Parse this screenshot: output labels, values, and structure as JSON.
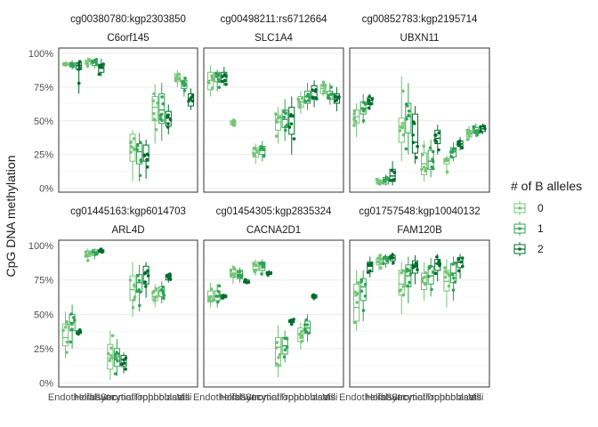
{
  "chart_data": {
    "type": "boxplot",
    "ylabel": "CpG DNA methylation",
    "xlabel": "",
    "y_ticks": [
      "0%",
      "25%",
      "50%",
      "75%",
      "100%"
    ],
    "y_tick_values": [
      0,
      0.25,
      0.5,
      0.75,
      1.0
    ],
    "ylim": [
      -0.03,
      1.04
    ],
    "categories": [
      "Endothelial",
      "Hofbauer",
      "Stromal",
      "Syncytiotrophoblasts",
      "Trophoblasts",
      "Villi"
    ],
    "legend": {
      "title": "# of B alleles",
      "position": "right",
      "entries": [
        {
          "label": "0",
          "color": "#74c476"
        },
        {
          "label": "1",
          "color": "#31a354"
        },
        {
          "label": "2",
          "color": "#006d2c"
        }
      ]
    },
    "grid": true,
    "panels": [
      {
        "strip1": "cg00380780:kgp2303850",
        "strip2": "C6orf145",
        "groups": [
          [
            [
              0.9,
              0.91,
              0.92,
              0.93,
              0.94,
              0.95,
              0.96
            ],
            [
              0.88,
              0.9,
              0.92,
              0.93,
              0.95
            ],
            [
              0.7,
              0.88,
              0.91,
              0.93,
              0.95
            ]
          ],
          [
            [
              0.9,
              0.92,
              0.94,
              0.95,
              0.97
            ],
            [
              0.89,
              0.91,
              0.93,
              0.95,
              0.96
            ],
            [
              0.83,
              0.86,
              0.89,
              0.92,
              0.96
            ]
          ],
          null,
          [
            [
              0.05,
              0.2,
              0.3,
              0.4,
              0.43
            ],
            [
              0.05,
              0.18,
              0.27,
              0.33,
              0.41
            ],
            [
              0.07,
              0.2,
              0.25,
              0.32,
              0.36
            ]
          ],
          [
            [
              0.33,
              0.5,
              0.6,
              0.68,
              0.77
            ],
            [
              0.35,
              0.48,
              0.58,
              0.7,
              0.78
            ],
            [
              0.4,
              0.46,
              0.52,
              0.57,
              0.62
            ]
          ],
          [
            [
              0.75,
              0.79,
              0.82,
              0.85,
              0.88
            ],
            [
              0.68,
              0.74,
              0.77,
              0.8,
              0.83
            ],
            [
              0.58,
              0.61,
              0.65,
              0.7,
              0.74
            ]
          ]
        ]
      },
      {
        "strip1": "cg00498211:rs6712664",
        "strip2": "SLC1A4",
        "groups": [
          [
            [
              0.68,
              0.73,
              0.8,
              0.86,
              0.91
            ],
            [
              0.72,
              0.79,
              0.83,
              0.86,
              0.88
            ],
            [
              0.76,
              0.79,
              0.83,
              0.86,
              0.9
            ]
          ],
          [
            [
              0.46,
              0.47,
              0.49,
              0.5,
              0.51
            ],
            null,
            null
          ],
          [
            [
              0.18,
              0.23,
              0.26,
              0.3,
              0.33
            ],
            [
              0.2,
              0.25,
              0.28,
              0.31,
              0.35
            ],
            null
          ],
          [
            [
              0.33,
              0.43,
              0.49,
              0.54,
              0.6
            ],
            [
              0.35,
              0.45,
              0.51,
              0.58,
              0.66
            ],
            [
              0.25,
              0.4,
              0.53,
              0.6,
              0.68
            ]
          ],
          [
            [
              0.55,
              0.6,
              0.64,
              0.68,
              0.72
            ],
            [
              0.58,
              0.63,
              0.68,
              0.72,
              0.78
            ],
            [
              0.6,
              0.66,
              0.72,
              0.76,
              0.8
            ]
          ],
          [
            [
              0.68,
              0.7,
              0.74,
              0.77,
              0.8
            ],
            [
              0.62,
              0.66,
              0.69,
              0.72,
              0.78
            ],
            [
              0.57,
              0.63,
              0.67,
              0.7,
              0.75
            ]
          ]
        ]
      },
      {
        "strip1": "cg00852783:kgp2195714",
        "strip2": "UBXN11",
        "groups": [
          [
            [
              0.38,
              0.48,
              0.53,
              0.58,
              0.63
            ],
            [
              0.48,
              0.55,
              0.59,
              0.64,
              0.7
            ],
            [
              0.58,
              0.62,
              0.65,
              0.67,
              0.7
            ]
          ],
          [
            [
              0.02,
              0.03,
              0.05,
              0.06,
              0.08
            ],
            [
              0.02,
              0.03,
              0.06,
              0.08,
              0.1
            ],
            [
              0.02,
              0.05,
              0.09,
              0.14,
              0.2
            ]
          ],
          [
            [
              0.2,
              0.34,
              0.46,
              0.52,
              0.83
            ],
            [
              0.25,
              0.41,
              0.53,
              0.63,
              0.78
            ],
            [
              0.18,
              0.26,
              0.34,
              0.55,
              0.61
            ]
          ],
          [
            [
              0.05,
              0.1,
              0.18,
              0.26,
              0.35
            ],
            [
              0.08,
              0.14,
              0.2,
              0.28,
              0.36
            ],
            [
              0.25,
              0.33,
              0.37,
              0.43,
              0.47
            ]
          ],
          [
            [
              0.1,
              0.18,
              0.2,
              0.22,
              0.24
            ],
            [
              0.2,
              0.23,
              0.27,
              0.3,
              0.34
            ],
            [
              0.28,
              0.31,
              0.33,
              0.35,
              0.38
            ]
          ],
          [
            [
              0.35,
              0.38,
              0.4,
              0.43,
              0.46
            ],
            [
              0.38,
              0.41,
              0.43,
              0.45,
              0.48
            ],
            [
              0.4,
              0.42,
              0.44,
              0.46,
              0.48
            ]
          ]
        ]
      },
      {
        "strip1": "cg01445163:kgp6014703",
        "strip2": "ARL4D",
        "groups": [
          [
            [
              0.18,
              0.27,
              0.33,
              0.43,
              0.52
            ],
            [
              0.25,
              0.38,
              0.44,
              0.5,
              0.57
            ],
            [
              0.35,
              0.36,
              0.37,
              0.38,
              0.39
            ]
          ],
          [
            [
              0.88,
              0.92,
              0.94,
              0.96,
              0.98
            ],
            [
              0.9,
              0.93,
              0.95,
              0.97,
              0.98
            ],
            [
              0.94,
              0.95,
              0.96,
              0.97,
              0.98
            ]
          ],
          [
            [
              0.02,
              0.1,
              0.18,
              0.28,
              0.38
            ],
            [
              0.05,
              0.12,
              0.19,
              0.25,
              0.32
            ],
            [
              0.07,
              0.12,
              0.17,
              0.2,
              0.22
            ]
          ],
          [
            [
              0.48,
              0.6,
              0.68,
              0.78,
              0.88
            ],
            [
              0.52,
              0.66,
              0.73,
              0.79,
              0.86
            ],
            [
              0.62,
              0.72,
              0.8,
              0.85,
              0.88
            ]
          ],
          [
            [
              0.55,
              0.6,
              0.63,
              0.67,
              0.72
            ],
            [
              0.58,
              0.63,
              0.67,
              0.7,
              0.74
            ],
            [
              0.73,
              0.75,
              0.77,
              0.79,
              0.8
            ]
          ],
          null
        ]
      },
      {
        "strip1": "cg01454305:kgp2835324",
        "strip2": "CACNA2D1",
        "groups": [
          [
            [
              0.55,
              0.59,
              0.62,
              0.67,
              0.73
            ],
            [
              0.55,
              0.6,
              0.63,
              0.67,
              0.72
            ],
            [
              0.61,
              0.62,
              0.63,
              0.64,
              0.65
            ]
          ],
          [
            [
              0.72,
              0.77,
              0.8,
              0.83,
              0.86
            ],
            [
              0.73,
              0.76,
              0.79,
              0.82,
              0.84
            ],
            [
              0.72,
              0.73,
              0.74,
              0.75,
              0.76
            ]
          ],
          [
            [
              0.78,
              0.82,
              0.85,
              0.88,
              0.9
            ],
            [
              0.78,
              0.82,
              0.86,
              0.88,
              0.9
            ],
            [
              0.78,
              0.79,
              0.8,
              0.81,
              0.82
            ]
          ],
          [
            [
              0.04,
              0.12,
              0.26,
              0.33,
              0.42
            ],
            [
              0.15,
              0.21,
              0.27,
              0.33,
              0.38
            ],
            [
              0.42,
              0.44,
              0.45,
              0.46,
              0.47
            ]
          ],
          [
            [
              0.24,
              0.3,
              0.35,
              0.4,
              0.44
            ],
            [
              0.3,
              0.36,
              0.4,
              0.45,
              0.5
            ],
            [
              0.6,
              0.62,
              0.63,
              0.64,
              0.65
            ]
          ],
          null
        ]
      },
      {
        "strip1": "cg01757548:kgp10040132",
        "strip2": "FAM120B",
        "groups": [
          [
            [
              0.38,
              0.45,
              0.55,
              0.72,
              0.82
            ],
            [
              0.45,
              0.6,
              0.7,
              0.76,
              0.82
            ],
            [
              0.77,
              0.81,
              0.85,
              0.88,
              0.92
            ]
          ],
          [
            [
              0.82,
              0.86,
              0.89,
              0.91,
              0.94
            ],
            [
              0.84,
              0.87,
              0.9,
              0.92,
              0.94
            ],
            [
              0.86,
              0.89,
              0.91,
              0.93,
              0.95
            ]
          ],
          [
            [
              0.5,
              0.64,
              0.72,
              0.82,
              0.88
            ],
            [
              0.58,
              0.7,
              0.78,
              0.86,
              0.92
            ],
            [
              0.72,
              0.8,
              0.85,
              0.89,
              0.93
            ]
          ],
          [
            [
              0.6,
              0.68,
              0.73,
              0.8,
              0.88
            ],
            [
              0.63,
              0.72,
              0.78,
              0.85,
              0.91
            ],
            [
              0.74,
              0.82,
              0.87,
              0.9,
              0.94
            ]
          ],
          [
            [
              0.55,
              0.67,
              0.74,
              0.82,
              0.9
            ],
            [
              0.6,
              0.73,
              0.8,
              0.87,
              0.92
            ],
            [
              0.76,
              0.84,
              0.88,
              0.91,
              0.94
            ]
          ],
          null
        ]
      }
    ]
  }
}
